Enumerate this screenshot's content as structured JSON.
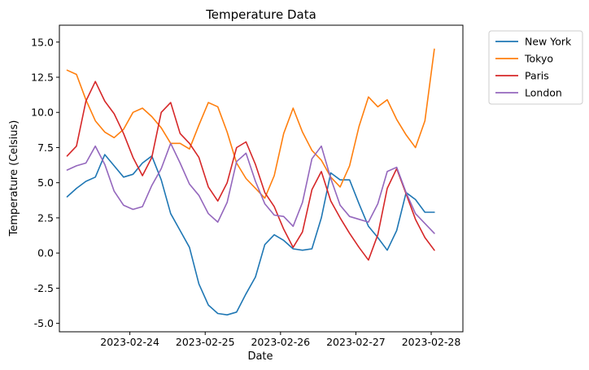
{
  "chart_data": {
    "type": "line",
    "title": "Temperature Data",
    "xlabel": "Date",
    "ylabel": "Temperature (Celsius)",
    "x_tick_labels": [
      "2023-02-24",
      "2023-02-25",
      "2023-02-26",
      "2023-02-27",
      "2023-02-28"
    ],
    "y_tick_labels": [
      "-5.0",
      "-2.5",
      "0.0",
      "2.5",
      "5.0",
      "7.5",
      "10.0",
      "12.5",
      "15.0"
    ],
    "x_range": [
      "2023-02-23 01:33",
      "2023-02-28 10:06"
    ],
    "ylim": [
      -5.6,
      16.2
    ],
    "grid": false,
    "legend_position": "outside-upper-right",
    "x": [
      "2023-02-23 04:00",
      "2023-02-23 07:00",
      "2023-02-23 10:00",
      "2023-02-23 13:00",
      "2023-02-23 16:00",
      "2023-02-23 19:00",
      "2023-02-23 22:00",
      "2023-02-24 01:00",
      "2023-02-24 04:00",
      "2023-02-24 07:00",
      "2023-02-24 10:00",
      "2023-02-24 13:00",
      "2023-02-24 16:00",
      "2023-02-24 19:00",
      "2023-02-24 22:00",
      "2023-02-25 01:00",
      "2023-02-25 04:00",
      "2023-02-25 07:00",
      "2023-02-25 10:00",
      "2023-02-25 13:00",
      "2023-02-25 16:00",
      "2023-02-25 19:00",
      "2023-02-25 22:00",
      "2023-02-26 01:00",
      "2023-02-26 04:00",
      "2023-02-26 07:00",
      "2023-02-26 10:00",
      "2023-02-26 13:00",
      "2023-02-26 16:00",
      "2023-02-26 19:00",
      "2023-02-26 22:00",
      "2023-02-27 01:00",
      "2023-02-27 04:00",
      "2023-02-27 07:00",
      "2023-02-27 10:00",
      "2023-02-27 13:00",
      "2023-02-27 16:00",
      "2023-02-27 19:00",
      "2023-02-27 22:00",
      "2023-02-28 01:00",
      "2023-02-28 04:00"
    ],
    "series": [
      {
        "name": "New York",
        "color": "#1f77b4",
        "values": [
          4.0,
          4.6,
          5.1,
          5.4,
          7.0,
          6.2,
          5.4,
          5.6,
          6.4,
          6.9,
          5.2,
          2.8,
          1.6,
          0.4,
          -2.2,
          -3.7,
          -4.3,
          -4.4,
          -4.2,
          -2.9,
          -1.7,
          0.6,
          1.3,
          0.9,
          0.3,
          0.2,
          0.3,
          2.5,
          5.7,
          5.2,
          5.2,
          3.5,
          1.9,
          1.1,
          0.2,
          1.6,
          4.3,
          3.8,
          2.9,
          2.9,
          null
        ]
      },
      {
        "name": "Tokyo",
        "color": "#ff7f0e",
        "values": [
          13.0,
          12.7,
          10.9,
          9.4,
          8.6,
          8.2,
          8.8,
          10.0,
          10.3,
          9.7,
          8.9,
          7.8,
          7.8,
          7.4,
          9.1,
          10.7,
          10.4,
          8.6,
          6.4,
          5.3,
          4.6,
          3.9,
          5.5,
          8.5,
          10.3,
          8.6,
          7.3,
          6.6,
          5.4,
          4.7,
          6.2,
          9.0,
          11.1,
          10.4,
          10.9,
          9.5,
          8.4,
          7.5,
          9.4,
          14.5,
          null
        ]
      },
      {
        "name": "Paris",
        "color": "#d62728",
        "values": [
          6.9,
          7.6,
          10.8,
          12.2,
          10.8,
          9.9,
          8.5,
          6.8,
          5.5,
          6.8,
          10.0,
          10.7,
          8.5,
          7.8,
          6.8,
          4.7,
          3.7,
          5.0,
          7.5,
          7.9,
          6.3,
          4.3,
          3.3,
          1.7,
          0.4,
          1.5,
          4.5,
          5.8,
          3.7,
          2.5,
          1.4,
          0.4,
          -0.5,
          1.3,
          4.6,
          6.0,
          4.2,
          2.4,
          1.1,
          0.2,
          null
        ]
      },
      {
        "name": "London",
        "color": "#9467bd",
        "values": [
          5.9,
          6.2,
          6.4,
          7.6,
          6.3,
          4.4,
          3.4,
          3.1,
          3.3,
          4.8,
          6.0,
          7.8,
          6.4,
          4.9,
          4.1,
          2.8,
          2.2,
          3.6,
          6.5,
          7.1,
          5.1,
          3.5,
          2.7,
          2.6,
          1.9,
          3.6,
          6.7,
          7.6,
          5.3,
          3.4,
          2.6,
          2.4,
          2.2,
          3.5,
          5.8,
          6.1,
          4.3,
          2.8,
          2.1,
          1.4,
          null
        ]
      }
    ]
  }
}
